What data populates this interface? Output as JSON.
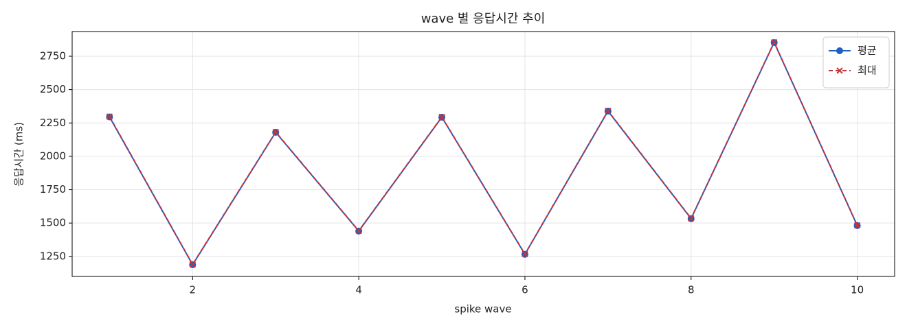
{
  "chart_data": {
    "type": "line",
    "title": "wave 별 응답시간 추이",
    "x_label": "spike wave",
    "y_label": "응답시간 (ms)",
    "x": [
      1,
      2,
      3,
      4,
      5,
      6,
      7,
      8,
      9,
      10
    ],
    "series": [
      {
        "name": "평균",
        "color": "#1f5fbf",
        "values": [
          2295,
          1188,
          2180,
          1440,
          2293,
          1266,
          2339,
          1533,
          2853,
          1481
        ]
      },
      {
        "name": "최대",
        "color": "#c8323a",
        "values": [
          2298,
          1190,
          2182,
          1442,
          2295,
          1268,
          2341,
          1535,
          2855,
          1483
        ]
      }
    ],
    "xlim": [
      0.55,
      10.45
    ],
    "xticks": [
      2,
      4,
      6,
      8,
      10
    ],
    "ylim": [
      1100,
      2935
    ],
    "yticks": [
      1250,
      1500,
      1750,
      2000,
      2250,
      2500,
      2750
    ],
    "grid": true,
    "legend": "upper right"
  }
}
